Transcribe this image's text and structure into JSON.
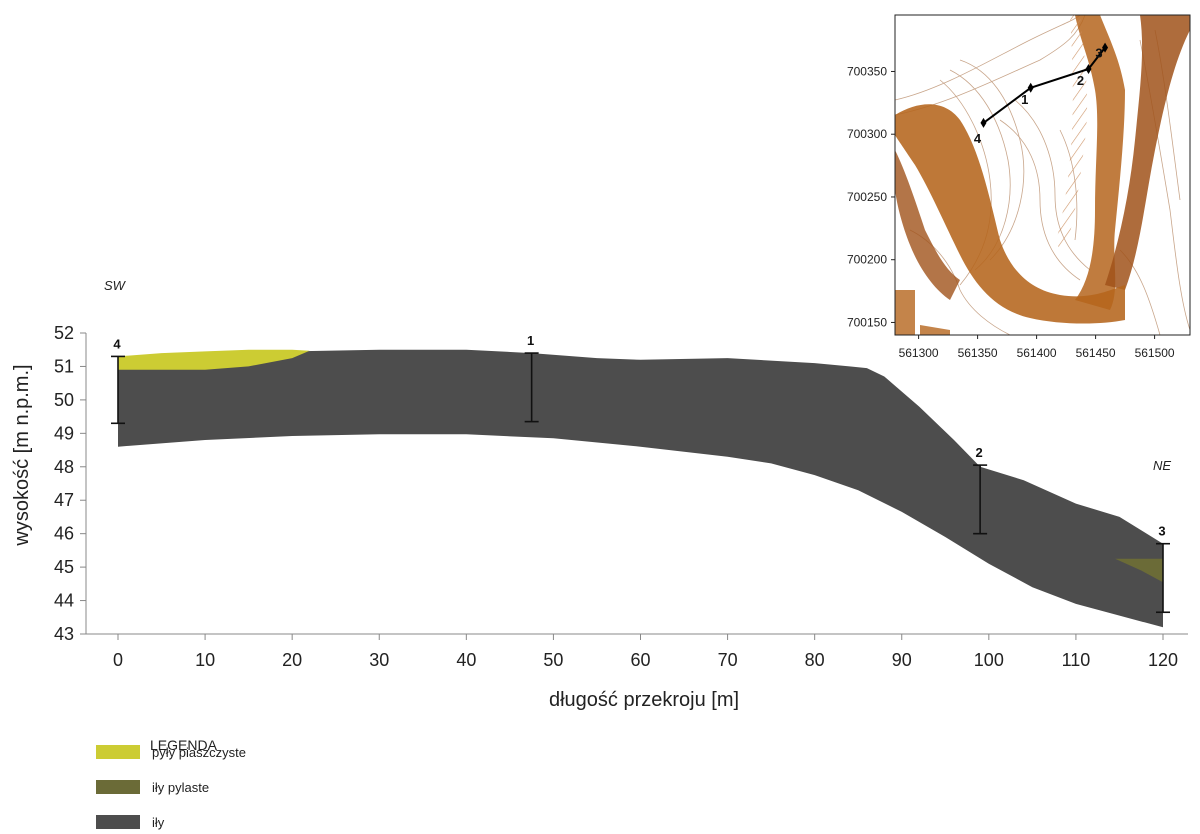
{
  "direction_left": "SW",
  "direction_right": "NE",
  "axes": {
    "xlabel": "długość przekroju [m]",
    "ylabel": "wysokość [m n.p.m.]",
    "xticks": [
      "0",
      "10",
      "20",
      "30",
      "40",
      "50",
      "60",
      "70",
      "80",
      "90",
      "100",
      "110",
      "120"
    ],
    "yticks": [
      "43",
      "44",
      "45",
      "46",
      "47",
      "48",
      "49",
      "50",
      "51",
      "52"
    ],
    "xlim": [
      0,
      120
    ],
    "ylim": [
      43,
      52
    ]
  },
  "boreholes": [
    {
      "label": "4",
      "x": 0,
      "top": 51.3,
      "bottom": 49.3
    },
    {
      "label": "1",
      "x": 47.5,
      "top": 51.4,
      "bottom": 49.35
    },
    {
      "label": "2",
      "x": 99,
      "top": 48.05,
      "bottom": 46.0
    },
    {
      "label": "3",
      "x": 120,
      "top": 45.7,
      "bottom": 43.65
    }
  ],
  "layers": {
    "ily": {
      "color": "#4d4d4d",
      "top": [
        [
          0,
          51.05
        ],
        [
          5,
          51.2
        ],
        [
          10,
          51.35
        ],
        [
          20,
          51.45
        ],
        [
          30,
          51.5
        ],
        [
          40,
          51.5
        ],
        [
          47.5,
          51.4
        ],
        [
          55,
          51.25
        ],
        [
          60,
          51.2
        ],
        [
          70,
          51.25
        ],
        [
          80,
          51.1
        ],
        [
          84,
          51.0
        ],
        [
          86,
          50.95
        ],
        [
          88,
          50.7
        ],
        [
          92,
          49.8
        ],
        [
          96,
          48.8
        ],
        [
          99,
          48.0
        ],
        [
          104,
          47.6
        ],
        [
          110,
          46.9
        ],
        [
          115,
          46.5
        ],
        [
          120,
          45.7
        ]
      ],
      "bottom": [
        [
          120,
          43.2
        ],
        [
          115,
          43.55
        ],
        [
          110,
          43.9
        ],
        [
          105,
          44.4
        ],
        [
          100,
          45.1
        ],
        [
          95,
          45.9
        ],
        [
          90,
          46.65
        ],
        [
          85,
          47.3
        ],
        [
          80,
          47.75
        ],
        [
          75,
          48.1
        ],
        [
          70,
          48.3
        ],
        [
          60,
          48.6
        ],
        [
          50,
          48.85
        ],
        [
          40,
          48.97
        ],
        [
          30,
          48.97
        ],
        [
          20,
          48.92
        ],
        [
          10,
          48.8
        ],
        [
          0,
          48.6
        ]
      ]
    },
    "pyly_piaszczyste": {
      "color": "#cccc33",
      "outline": [
        [
          0,
          51.3
        ],
        [
          5,
          51.4
        ],
        [
          10,
          51.45
        ],
        [
          15,
          51.5
        ],
        [
          20,
          51.5
        ],
        [
          22,
          51.47
        ],
        [
          20,
          51.25
        ],
        [
          15,
          51.0
        ],
        [
          10,
          50.9
        ],
        [
          0,
          50.9
        ]
      ]
    },
    "ily_pylaste": {
      "color": "#6b6b37",
      "outline": [
        [
          114.5,
          45.25
        ],
        [
          120,
          45.25
        ],
        [
          120,
          44.55
        ],
        [
          117.5,
          44.9
        ]
      ]
    }
  },
  "legend": {
    "title": "LEGENDA",
    "items": [
      {
        "label": "pyły piaszczyste",
        "color": "#cccc33"
      },
      {
        "label": "iły pylaste",
        "color": "#6b6b37"
      },
      {
        "label": "iły",
        "color": "#4d4d4d"
      }
    ]
  },
  "inset_map": {
    "xticks": [
      "561300",
      "561350",
      "561400",
      "561450",
      "561500"
    ],
    "yticks": [
      "700350",
      "700300",
      "700250",
      "700200",
      "700150"
    ],
    "xlim": [
      561280,
      561530
    ],
    "ylim": [
      700140,
      700395
    ],
    "profile_line": [
      {
        "label": "4",
        "x": 561355,
        "y": 700309
      },
      {
        "label": "1",
        "x": 561395,
        "y": 700337
      },
      {
        "label": "2",
        "x": 561444,
        "y": 700352
      },
      {
        "label": "3",
        "x": 561458,
        "y": 700369
      }
    ],
    "terrain_color": "#b5651d"
  }
}
